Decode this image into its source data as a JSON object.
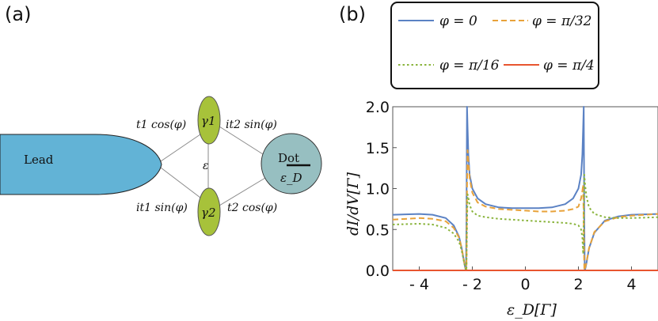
{
  "panel_a": {
    "label": "(a)",
    "lead_label": "Lead",
    "dot_label": "Dot",
    "dot_energy": "ε_D",
    "gamma1": "γ1",
    "gamma2": "γ2",
    "coupling_eps": "ε",
    "t1_cos": "t1 cos(φ)",
    "it2_sin": "it2 sin(φ)",
    "it1_sin": "it1 sin(φ)",
    "t2_cos": "t2 cos(φ)",
    "colors": {
      "lead": "#62b3d6",
      "dot": "#97bfc1",
      "majorana": "#a7c23a"
    }
  },
  "panel_b": {
    "label": "(b)"
  },
  "chart_data": {
    "type": "line",
    "xlabel": "ε_D[Γ]",
    "ylabel": "dI/dV[Γ]",
    "xlim": [
      -5,
      5
    ],
    "ylim": [
      0,
      2
    ],
    "x_ticks": [
      -4,
      -2,
      0,
      2,
      4
    ],
    "x_tick_labels": [
      "- 4",
      "- 2",
      "0",
      "2",
      "4"
    ],
    "y_ticks": [
      0,
      0.5,
      1.0,
      1.5,
      2.0
    ],
    "y_tick_labels": [
      "0.0",
      "0.5",
      "1.0",
      "1.5",
      "2.0"
    ],
    "legend_position": "top",
    "series": [
      {
        "name": "φ = 0",
        "color": "#5b82c4",
        "dash": "solid",
        "x": [
          -5,
          -4,
          -3.5,
          -3,
          -2.7,
          -2.5,
          -2.4,
          -2.3,
          -2.26,
          -2.24,
          -2.22,
          -2.2,
          -2.18,
          -2.15,
          -2.1,
          -2.0,
          -1.8,
          -1.5,
          -1,
          -0.5,
          0,
          0.5,
          1,
          1.5,
          1.8,
          2.0,
          2.1,
          2.15,
          2.18,
          2.2,
          2.22,
          2.24,
          2.26,
          2.3,
          2.4,
          2.6,
          3,
          3.5,
          4,
          5
        ],
        "y": [
          0.68,
          0.69,
          0.68,
          0.64,
          0.55,
          0.41,
          0.27,
          0.08,
          0.02,
          0.0,
          0.6,
          2.0,
          1.75,
          1.42,
          1.17,
          1.0,
          0.88,
          0.81,
          0.77,
          0.76,
          0.76,
          0.76,
          0.77,
          0.81,
          0.88,
          1.0,
          1.17,
          1.42,
          1.75,
          2.0,
          0.6,
          0.0,
          0.02,
          0.08,
          0.27,
          0.46,
          0.61,
          0.66,
          0.68,
          0.69
        ]
      },
      {
        "name": "φ = π/32",
        "color": "#e8a23a",
        "dash": "dashed",
        "x": [
          -5,
          -4,
          -3.5,
          -3,
          -2.7,
          -2.5,
          -2.4,
          -2.3,
          -2.25,
          -2.22,
          -2.2,
          -2.18,
          -2.15,
          -2.1,
          -2.0,
          -1.8,
          -1.5,
          -1,
          -0.5,
          0,
          0.5,
          1,
          1.5,
          1.8,
          2.0,
          2.1,
          2.15,
          2.18,
          2.2,
          2.22,
          2.25,
          2.3,
          2.4,
          2.6,
          3,
          3.5,
          4,
          5
        ],
        "y": [
          0.62,
          0.64,
          0.63,
          0.6,
          0.52,
          0.4,
          0.27,
          0.09,
          0.03,
          0.0,
          1.0,
          1.47,
          1.34,
          1.13,
          0.95,
          0.83,
          0.78,
          0.75,
          0.74,
          0.73,
          0.72,
          0.72,
          0.73,
          0.75,
          0.78,
          0.88,
          0.97,
          1.05,
          0.6,
          0.0,
          0.03,
          0.09,
          0.27,
          0.47,
          0.6,
          0.65,
          0.67,
          0.69
        ]
      },
      {
        "name": "φ = π/16",
        "color": "#8ab43c",
        "dash": "dotted",
        "x": [
          -5,
          -4,
          -3.5,
          -3,
          -2.7,
          -2.5,
          -2.4,
          -2.3,
          -2.25,
          -2.22,
          -2.2,
          -2.18,
          -2.15,
          -2.1,
          -2.0,
          -1.8,
          -1.5,
          -1,
          -0.5,
          0,
          0.5,
          1,
          1.5,
          1.8,
          2.0,
          2.1,
          2.15,
          2.18,
          2.2,
          2.22,
          2.25,
          2.3,
          2.4,
          2.6,
          3,
          3.5,
          4,
          5
        ],
        "y": [
          0.56,
          0.57,
          0.56,
          0.52,
          0.45,
          0.35,
          0.24,
          0.08,
          0.02,
          0.0,
          0.55,
          0.93,
          0.89,
          0.8,
          0.72,
          0.67,
          0.65,
          0.63,
          0.62,
          0.61,
          0.6,
          0.59,
          0.58,
          0.57,
          0.55,
          0.5,
          0.4,
          0.2,
          0.6,
          1.17,
          1.05,
          0.91,
          0.77,
          0.69,
          0.65,
          0.64,
          0.64,
          0.65
        ]
      },
      {
        "name": "φ = π/4",
        "color": "#e8552f",
        "dash": "solid",
        "x": [
          -5,
          5
        ],
        "y": [
          0,
          0
        ]
      }
    ]
  }
}
